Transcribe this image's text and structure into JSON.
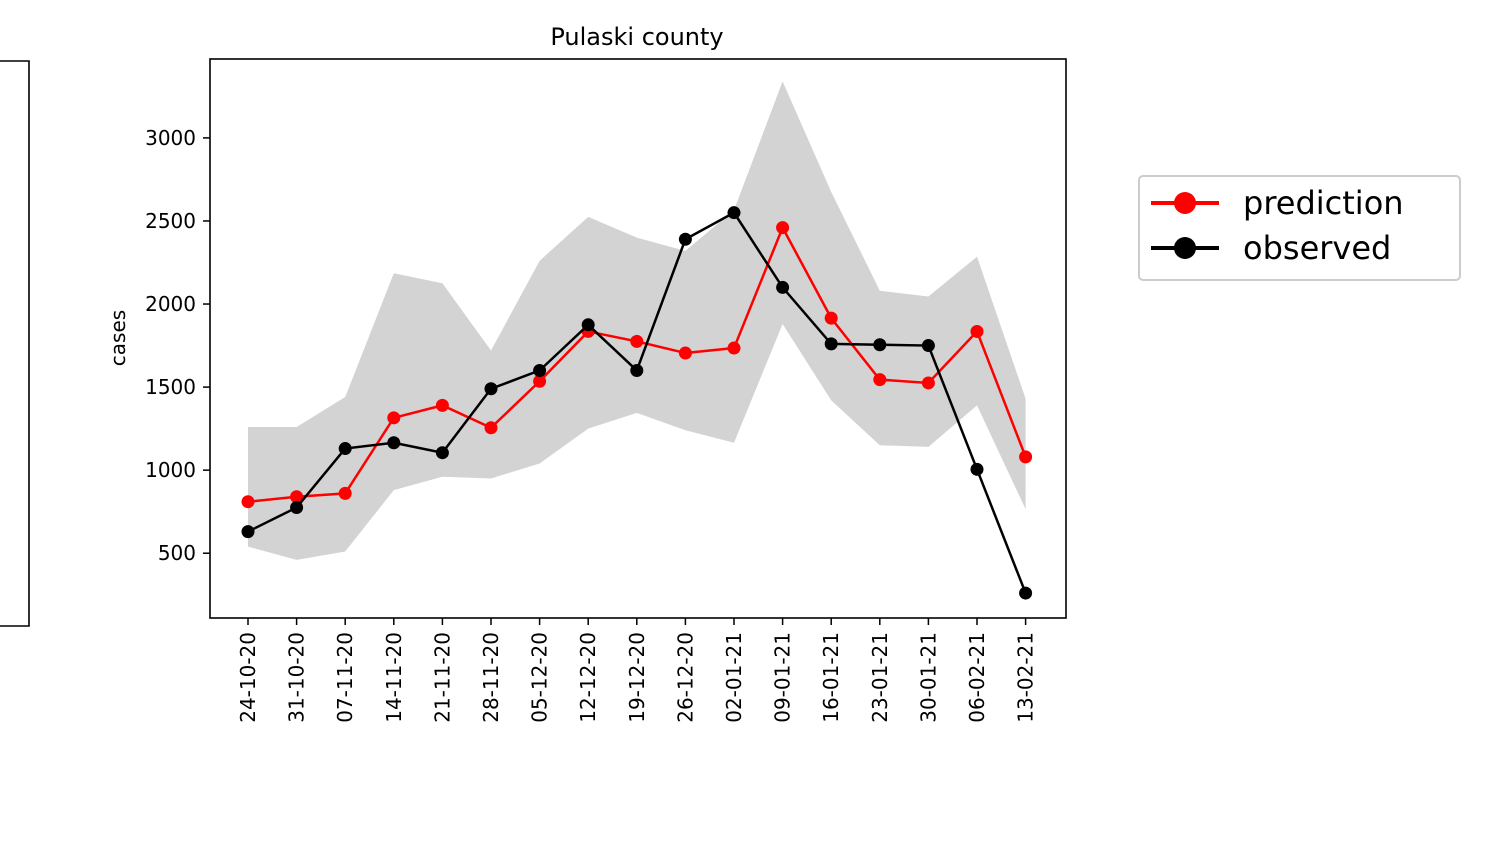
{
  "chart_data": {
    "type": "line",
    "title": "Pulaski county",
    "xlabel": "",
    "ylabel": "cases",
    "ylim": [
      110,
      3475
    ],
    "yticks": [
      500,
      1000,
      1500,
      2000,
      2500,
      3000
    ],
    "categories": [
      "24-10-20",
      "31-10-20",
      "07-11-20",
      "14-11-20",
      "21-11-20",
      "28-11-20",
      "05-12-20",
      "12-12-20",
      "19-12-20",
      "26-12-20",
      "02-01-21",
      "09-01-21",
      "16-01-21",
      "23-01-21",
      "30-01-21",
      "06-02-21",
      "13-02-21"
    ],
    "series": [
      {
        "name": "prediction",
        "color": "#ff0000",
        "values": [
          810,
          840,
          860,
          1315,
          1390,
          1255,
          1535,
          1835,
          1775,
          1705,
          1735,
          2460,
          1915,
          1545,
          1525,
          1835,
          1080
        ]
      },
      {
        "name": "observed",
        "color": "#000000",
        "values": [
          630,
          775,
          1130,
          1165,
          1105,
          1490,
          1600,
          1875,
          1600,
          2390,
          2550,
          2100,
          1760,
          1755,
          1750,
          1005,
          260
        ]
      }
    ],
    "band": {
      "color": "#d3d3d3",
      "lower": [
        540,
        460,
        510,
        880,
        960,
        950,
        1040,
        1250,
        1345,
        1240,
        1165,
        1880,
        1420,
        1150,
        1140,
        1390,
        765
      ],
      "upper": [
        1260,
        1260,
        1440,
        2185,
        2125,
        1720,
        2260,
        2525,
        2400,
        2320,
        2565,
        3340,
        2675,
        2080,
        2045,
        2285,
        1430
      ]
    },
    "legend_position": "right, outside plot"
  }
}
